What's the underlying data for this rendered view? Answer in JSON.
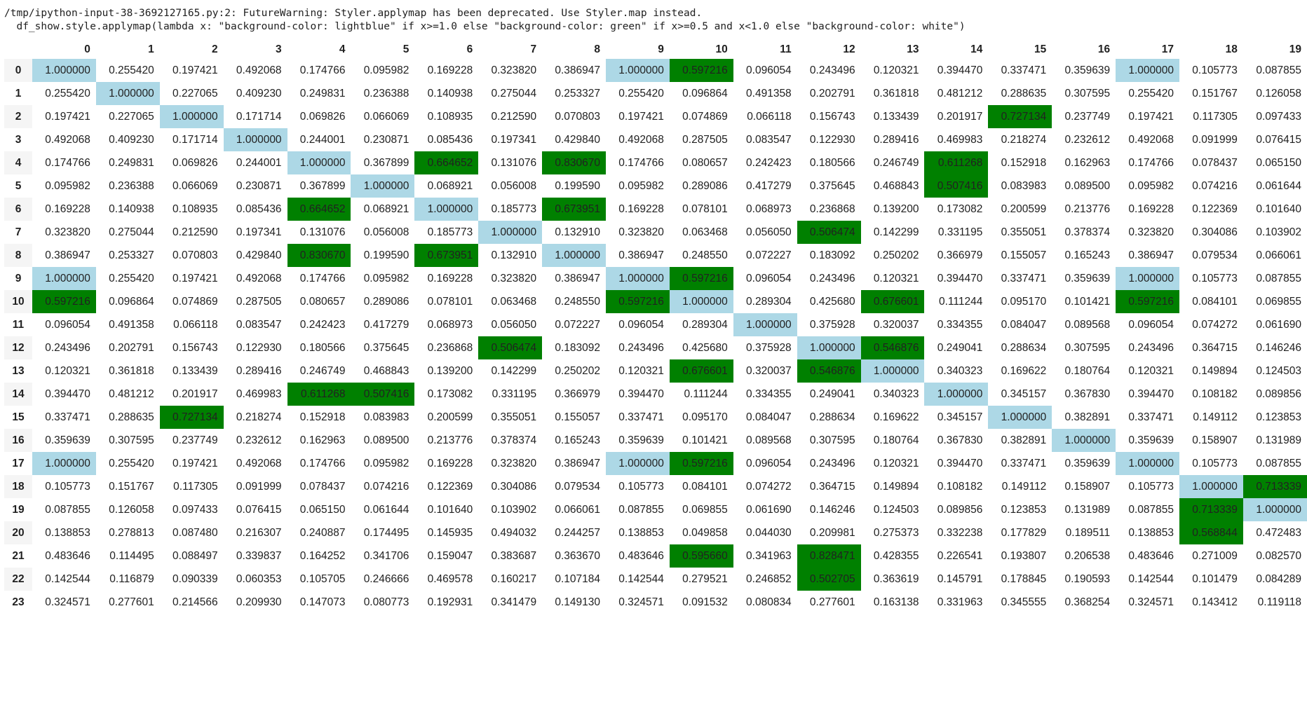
{
  "warning": {
    "line1": "/tmp/ipython-input-38-3692127165.py:2: FutureWarning: Styler.applymap has been deprecated. Use Styler.map instead.",
    "line2": "  df_show.style.applymap(lambda x: \"background-color: lightblue\" if x>=1.0 else \"background-color: green\" if x>=0.5 and x<1.0 else \"background-color: white\")"
  },
  "styles": {
    "high_color": "#add8e6",
    "mid_color": "#008000",
    "default_color": "#ffffff",
    "high_threshold": 1.0,
    "mid_threshold": 0.5
  },
  "table": {
    "columns": [
      "0",
      "1",
      "2",
      "3",
      "4",
      "5",
      "6",
      "7",
      "8",
      "9",
      "10",
      "11",
      "12",
      "13",
      "14",
      "15",
      "16",
      "17",
      "18",
      "19"
    ],
    "index": [
      "0",
      "1",
      "2",
      "3",
      "4",
      "5",
      "6",
      "7",
      "8",
      "9",
      "10",
      "11",
      "12",
      "13",
      "14",
      "15",
      "16",
      "17",
      "18",
      "19",
      "20",
      "21",
      "22",
      "23"
    ],
    "rows": [
      [
        "1.000000",
        "0.255420",
        "0.197421",
        "0.492068",
        "0.174766",
        "0.095982",
        "0.169228",
        "0.323820",
        "0.386947",
        "1.000000",
        "0.597216",
        "0.096054",
        "0.243496",
        "0.120321",
        "0.394470",
        "0.337471",
        "0.359639",
        "1.000000",
        "0.105773",
        "0.087855"
      ],
      [
        "0.255420",
        "1.000000",
        "0.227065",
        "0.409230",
        "0.249831",
        "0.236388",
        "0.140938",
        "0.275044",
        "0.253327",
        "0.255420",
        "0.096864",
        "0.491358",
        "0.202791",
        "0.361818",
        "0.481212",
        "0.288635",
        "0.307595",
        "0.255420",
        "0.151767",
        "0.126058"
      ],
      [
        "0.197421",
        "0.227065",
        "1.000000",
        "0.171714",
        "0.069826",
        "0.066069",
        "0.108935",
        "0.212590",
        "0.070803",
        "0.197421",
        "0.074869",
        "0.066118",
        "0.156743",
        "0.133439",
        "0.201917",
        "0.727134",
        "0.237749",
        "0.197421",
        "0.117305",
        "0.097433"
      ],
      [
        "0.492068",
        "0.409230",
        "0.171714",
        "1.000000",
        "0.244001",
        "0.230871",
        "0.085436",
        "0.197341",
        "0.429840",
        "0.492068",
        "0.287505",
        "0.083547",
        "0.122930",
        "0.289416",
        "0.469983",
        "0.218274",
        "0.232612",
        "0.492068",
        "0.091999",
        "0.076415"
      ],
      [
        "0.174766",
        "0.249831",
        "0.069826",
        "0.244001",
        "1.000000",
        "0.367899",
        "0.664652",
        "0.131076",
        "0.830670",
        "0.174766",
        "0.080657",
        "0.242423",
        "0.180566",
        "0.246749",
        "0.611268",
        "0.152918",
        "0.162963",
        "0.174766",
        "0.078437",
        "0.065150"
      ],
      [
        "0.095982",
        "0.236388",
        "0.066069",
        "0.230871",
        "0.367899",
        "1.000000",
        "0.068921",
        "0.056008",
        "0.199590",
        "0.095982",
        "0.289086",
        "0.417279",
        "0.375645",
        "0.468843",
        "0.507416",
        "0.083983",
        "0.089500",
        "0.095982",
        "0.074216",
        "0.061644"
      ],
      [
        "0.169228",
        "0.140938",
        "0.108935",
        "0.085436",
        "0.664652",
        "0.068921",
        "1.000000",
        "0.185773",
        "0.673951",
        "0.169228",
        "0.078101",
        "0.068973",
        "0.236868",
        "0.139200",
        "0.173082",
        "0.200599",
        "0.213776",
        "0.169228",
        "0.122369",
        "0.101640"
      ],
      [
        "0.323820",
        "0.275044",
        "0.212590",
        "0.197341",
        "0.131076",
        "0.056008",
        "0.185773",
        "1.000000",
        "0.132910",
        "0.323820",
        "0.063468",
        "0.056050",
        "0.506474",
        "0.142299",
        "0.331195",
        "0.355051",
        "0.378374",
        "0.323820",
        "0.304086",
        "0.103902"
      ],
      [
        "0.386947",
        "0.253327",
        "0.070803",
        "0.429840",
        "0.830670",
        "0.199590",
        "0.673951",
        "0.132910",
        "1.000000",
        "0.386947",
        "0.248550",
        "0.072227",
        "0.183092",
        "0.250202",
        "0.366979",
        "0.155057",
        "0.165243",
        "0.386947",
        "0.079534",
        "0.066061"
      ],
      [
        "1.000000",
        "0.255420",
        "0.197421",
        "0.492068",
        "0.174766",
        "0.095982",
        "0.169228",
        "0.323820",
        "0.386947",
        "1.000000",
        "0.597216",
        "0.096054",
        "0.243496",
        "0.120321",
        "0.394470",
        "0.337471",
        "0.359639",
        "1.000000",
        "0.105773",
        "0.087855"
      ],
      [
        "0.597216",
        "0.096864",
        "0.074869",
        "0.287505",
        "0.080657",
        "0.289086",
        "0.078101",
        "0.063468",
        "0.248550",
        "0.597216",
        "1.000000",
        "0.289304",
        "0.425680",
        "0.676601",
        "0.111244",
        "0.095170",
        "0.101421",
        "0.597216",
        "0.084101",
        "0.069855"
      ],
      [
        "0.096054",
        "0.491358",
        "0.066118",
        "0.083547",
        "0.242423",
        "0.417279",
        "0.068973",
        "0.056050",
        "0.072227",
        "0.096054",
        "0.289304",
        "1.000000",
        "0.375928",
        "0.320037",
        "0.334355",
        "0.084047",
        "0.089568",
        "0.096054",
        "0.074272",
        "0.061690"
      ],
      [
        "0.243496",
        "0.202791",
        "0.156743",
        "0.122930",
        "0.180566",
        "0.375645",
        "0.236868",
        "0.506474",
        "0.183092",
        "0.243496",
        "0.425680",
        "0.375928",
        "1.000000",
        "0.546876",
        "0.249041",
        "0.288634",
        "0.307595",
        "0.243496",
        "0.364715",
        "0.146246"
      ],
      [
        "0.120321",
        "0.361818",
        "0.133439",
        "0.289416",
        "0.246749",
        "0.468843",
        "0.139200",
        "0.142299",
        "0.250202",
        "0.120321",
        "0.676601",
        "0.320037",
        "0.546876",
        "1.000000",
        "0.340323",
        "0.169622",
        "0.180764",
        "0.120321",
        "0.149894",
        "0.124503"
      ],
      [
        "0.394470",
        "0.481212",
        "0.201917",
        "0.469983",
        "0.611268",
        "0.507416",
        "0.173082",
        "0.331195",
        "0.366979",
        "0.394470",
        "0.111244",
        "0.334355",
        "0.249041",
        "0.340323",
        "1.000000",
        "0.345157",
        "0.367830",
        "0.394470",
        "0.108182",
        "0.089856"
      ],
      [
        "0.337471",
        "0.288635",
        "0.727134",
        "0.218274",
        "0.152918",
        "0.083983",
        "0.200599",
        "0.355051",
        "0.155057",
        "0.337471",
        "0.095170",
        "0.084047",
        "0.288634",
        "0.169622",
        "0.345157",
        "1.000000",
        "0.382891",
        "0.337471",
        "0.149112",
        "0.123853"
      ],
      [
        "0.359639",
        "0.307595",
        "0.237749",
        "0.232612",
        "0.162963",
        "0.089500",
        "0.213776",
        "0.378374",
        "0.165243",
        "0.359639",
        "0.101421",
        "0.089568",
        "0.307595",
        "0.180764",
        "0.367830",
        "0.382891",
        "1.000000",
        "0.359639",
        "0.158907",
        "0.131989"
      ],
      [
        "1.000000",
        "0.255420",
        "0.197421",
        "0.492068",
        "0.174766",
        "0.095982",
        "0.169228",
        "0.323820",
        "0.386947",
        "1.000000",
        "0.597216",
        "0.096054",
        "0.243496",
        "0.120321",
        "0.394470",
        "0.337471",
        "0.359639",
        "1.000000",
        "0.105773",
        "0.087855"
      ],
      [
        "0.105773",
        "0.151767",
        "0.117305",
        "0.091999",
        "0.078437",
        "0.074216",
        "0.122369",
        "0.304086",
        "0.079534",
        "0.105773",
        "0.084101",
        "0.074272",
        "0.364715",
        "0.149894",
        "0.108182",
        "0.149112",
        "0.158907",
        "0.105773",
        "1.000000",
        "0.713339"
      ],
      [
        "0.087855",
        "0.126058",
        "0.097433",
        "0.076415",
        "0.065150",
        "0.061644",
        "0.101640",
        "0.103902",
        "0.066061",
        "0.087855",
        "0.069855",
        "0.061690",
        "0.146246",
        "0.124503",
        "0.089856",
        "0.123853",
        "0.131989",
        "0.087855",
        "0.713339",
        "1.000000"
      ],
      [
        "0.138853",
        "0.278813",
        "0.087480",
        "0.216307",
        "0.240887",
        "0.174495",
        "0.145935",
        "0.494032",
        "0.244257",
        "0.138853",
        "0.049858",
        "0.044030",
        "0.209981",
        "0.275373",
        "0.332238",
        "0.177829",
        "0.189511",
        "0.138853",
        "0.568844",
        "0.472483"
      ],
      [
        "0.483646",
        "0.114495",
        "0.088497",
        "0.339837",
        "0.164252",
        "0.341706",
        "0.159047",
        "0.383687",
        "0.363670",
        "0.483646",
        "0.595660",
        "0.341963",
        "0.828471",
        "0.428355",
        "0.226541",
        "0.193807",
        "0.206538",
        "0.483646",
        "0.271009",
        "0.082570"
      ],
      [
        "0.142544",
        "0.116879",
        "0.090339",
        "0.060353",
        "0.105705",
        "0.246666",
        "0.469578",
        "0.160217",
        "0.107184",
        "0.142544",
        "0.279521",
        "0.246852",
        "0.502705",
        "0.363619",
        "0.145791",
        "0.178845",
        "0.190593",
        "0.142544",
        "0.101479",
        "0.084289"
      ],
      [
        "0.324571",
        "0.277601",
        "0.214566",
        "0.209930",
        "0.147073",
        "0.080773",
        "0.192931",
        "0.341479",
        "0.149130",
        "0.324571",
        "0.091532",
        "0.080834",
        "0.277601",
        "0.163138",
        "0.331963",
        "0.345555",
        "0.368254",
        "0.324571",
        "0.143412",
        "0.119118"
      ]
    ]
  }
}
